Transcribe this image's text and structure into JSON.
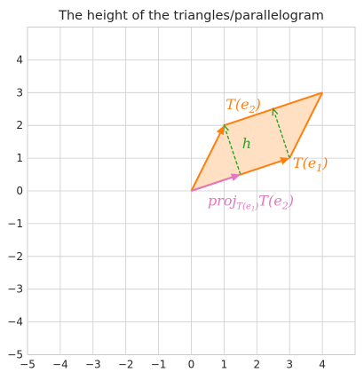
{
  "chart_data": {
    "type": "line",
    "title": "The height of the triangles/parallelogram",
    "xlim": [
      -5,
      5
    ],
    "ylim": [
      -5,
      5
    ],
    "xticks": [
      -5,
      -4,
      -3,
      -2,
      -1,
      0,
      1,
      2,
      3,
      4
    ],
    "yticks": [
      -5,
      -4,
      -3,
      -2,
      -1,
      0,
      1,
      2,
      3,
      4
    ],
    "grid": true,
    "colors": {
      "orange": "#ff7f0e",
      "fill": "#ffe0c2",
      "pink": "#e377c2",
      "green": "#2ca02c",
      "grid": "#cccccc",
      "axis": "#262626"
    },
    "parallelogram": {
      "vertices": [
        [
          0,
          0
        ],
        [
          3,
          1
        ],
        [
          4,
          3
        ],
        [
          1,
          2
        ]
      ]
    },
    "vectors": [
      {
        "name": "T(e1)",
        "from": [
          0,
          0
        ],
        "to": [
          3,
          1
        ],
        "color": "orange"
      },
      {
        "name": "T(e2)",
        "from": [
          0,
          0
        ],
        "to": [
          1,
          2
        ],
        "color": "orange"
      },
      {
        "name": "proj",
        "from": [
          0,
          0
        ],
        "to": [
          1.5,
          0.5
        ],
        "color": "pink"
      }
    ],
    "height_lines": [
      {
        "from": [
          1.5,
          0.5
        ],
        "to": [
          1,
          2
        ]
      },
      {
        "from": [
          3,
          1
        ],
        "to": [
          2.5,
          2.5
        ]
      }
    ],
    "annotations": {
      "t_e2": {
        "base": "T(e",
        "sub": "2",
        "close": ")",
        "x": 1.05,
        "y": 2.5
      },
      "t_e1": {
        "base": "T(e",
        "sub": "1",
        "close": ")",
        "x": 3.1,
        "y": 0.7
      },
      "proj": {
        "base": "proj",
        "sub": "T(e",
        "subsub": "1",
        "subclose": ")",
        "tail": "T(e",
        "tailsub": "2",
        "tailclose": ")",
        "x": 0.5,
        "y": -0.45
      },
      "h": {
        "text": "h",
        "x": 1.55,
        "y": 1.3
      }
    }
  }
}
